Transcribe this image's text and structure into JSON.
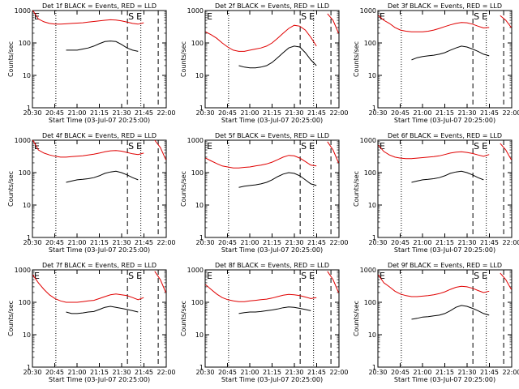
{
  "figure": {
    "background": "#ffffff",
    "events_color": "#000000",
    "lld_color": "#e00000"
  },
  "chart_data": [
    {
      "type": "line",
      "title": "Det 1f BLACK = Events, RED = LLD",
      "xlabel": "Start Time (03-Jul-07 20:25:00)",
      "ylabel": "Counts/sec",
      "xticks": [
        "20:30",
        "20:45",
        "21:00",
        "21:15",
        "21:30",
        "21:45",
        "22:00"
      ],
      "yticks": [
        "1",
        "10",
        "100",
        "1000"
      ],
      "ylim": [
        1,
        1000
      ],
      "yscale": "log",
      "markers": [
        "E",
        "S",
        "E"
      ],
      "series": [
        {
          "values": [
            null,
            null,
            null,
            null,
            null,
            null,
            60,
            60,
            60,
            65,
            70,
            80,
            95,
            110,
            115,
            110,
            90,
            70,
            60,
            55,
            null,
            null,
            null,
            null,
            null
          ]
        },
        {
          "values": [
            1000,
            550,
            450,
            400,
            380,
            380,
            390,
            400,
            410,
            420,
            440,
            460,
            480,
            500,
            520,
            510,
            480,
            440,
            400,
            380,
            420,
            null,
            null,
            null,
            null
          ]
        }
      ]
    },
    {
      "type": "line",
      "title": "Det 2f BLACK = Events, RED = LLD",
      "xlabel": "Start Time (03-Jul-07 20:25:00)",
      "ylabel": "Counts/sec",
      "xticks": [
        "20:30",
        "20:45",
        "21:00",
        "21:15",
        "21:30",
        "21:45",
        "22:00"
      ],
      "yticks": [
        "1",
        "10",
        "100",
        "1000"
      ],
      "ylim": [
        1,
        1000
      ],
      "yscale": "log",
      "markers": [
        "E",
        "S",
        "E"
      ],
      "series": [
        {
          "values": [
            null,
            null,
            null,
            null,
            null,
            null,
            20,
            18,
            17,
            17,
            18,
            20,
            25,
            35,
            50,
            70,
            80,
            75,
            50,
            30,
            20,
            null,
            null,
            null,
            null
          ]
        },
        {
          "values": [
            220,
            180,
            140,
            100,
            75,
            60,
            55,
            55,
            60,
            65,
            70,
            80,
            100,
            140,
            200,
            280,
            350,
            330,
            250,
            150,
            80,
            null,
            800,
            500,
            200
          ]
        }
      ]
    },
    {
      "type": "line",
      "title": "Det 3f BLACK = Events, RED = LLD",
      "xlabel": "Start Time (03-Jul-07 20:25:00)",
      "ylabel": "Counts/sec",
      "xticks": [
        "20:30",
        "20:45",
        "21:00",
        "21:15",
        "21:30",
        "21:45",
        "22:00"
      ],
      "yticks": [
        "1",
        "10",
        "100",
        "1000"
      ],
      "ylim": [
        1,
        1000
      ],
      "yscale": "log",
      "markers": [
        "E",
        "S",
        "E"
      ],
      "series": [
        {
          "values": [
            null,
            null,
            null,
            null,
            null,
            null,
            30,
            35,
            38,
            40,
            42,
            45,
            50,
            60,
            70,
            80,
            75,
            65,
            55,
            45,
            40,
            null,
            null,
            null,
            null
          ]
        },
        {
          "values": [
            700,
            500,
            400,
            300,
            250,
            230,
            220,
            220,
            220,
            230,
            250,
            280,
            320,
            360,
            400,
            430,
            420,
            380,
            330,
            290,
            300,
            null,
            700,
            500,
            300
          ]
        }
      ]
    },
    {
      "type": "line",
      "title": "Det 4f BLACK = Events, RED = LLD",
      "xlabel": "Start Time (03-Jul-07 20:25:00)",
      "ylabel": "Counts/sec",
      "xticks": [
        "20:30",
        "20:45",
        "21:00",
        "21:15",
        "21:30",
        "21:45",
        "22:00"
      ],
      "yticks": [
        "1",
        "10",
        "100",
        "1000"
      ],
      "ylim": [
        1,
        1000
      ],
      "yscale": "log",
      "markers": [
        "E",
        "S",
        "E"
      ],
      "series": [
        {
          "values": [
            null,
            null,
            null,
            null,
            null,
            null,
            50,
            55,
            60,
            62,
            65,
            70,
            80,
            95,
            105,
            110,
            100,
            85,
            70,
            60,
            null,
            null,
            null,
            null,
            null
          ]
        },
        {
          "values": [
            1000,
            500,
            400,
            350,
            320,
            300,
            300,
            310,
            320,
            330,
            350,
            370,
            400,
            440,
            470,
            480,
            460,
            420,
            380,
            360,
            400,
            null,
            1000,
            600,
            250
          ]
        }
      ]
    },
    {
      "type": "line",
      "title": "Det 5f BLACK = Events, RED = LLD",
      "xlabel": "Start Time (03-Jul-07 20:25:00)",
      "ylabel": "Counts/sec",
      "xticks": [
        "20:30",
        "20:45",
        "21:00",
        "21:15",
        "21:30",
        "21:45",
        "22:00"
      ],
      "yticks": [
        "1",
        "10",
        "100",
        "1000"
      ],
      "ylim": [
        1,
        1000
      ],
      "yscale": "log",
      "markers": [
        "E",
        "S",
        "E"
      ],
      "series": [
        {
          "values": [
            null,
            null,
            null,
            null,
            null,
            null,
            35,
            38,
            40,
            42,
            45,
            50,
            60,
            75,
            90,
            100,
            95,
            80,
            60,
            45,
            40,
            null,
            null,
            null,
            null
          ]
        },
        {
          "values": [
            280,
            230,
            190,
            160,
            150,
            140,
            140,
            145,
            150,
            160,
            170,
            185,
            210,
            250,
            300,
            340,
            330,
            280,
            220,
            170,
            160,
            null,
            900,
            500,
            200
          ]
        }
      ]
    },
    {
      "type": "line",
      "title": "Det 6f BLACK = Events, RED = LLD",
      "xlabel": "Start Time (03-Jul-07 20:25:00)",
      "ylabel": "Counts/sec",
      "xticks": [
        "20:30",
        "20:45",
        "21:00",
        "21:15",
        "21:30",
        "21:45",
        "22:00"
      ],
      "yticks": [
        "1",
        "10",
        "100",
        "1000"
      ],
      "ylim": [
        1,
        1000
      ],
      "yscale": "log",
      "markers": [
        "E",
        "S",
        "E"
      ],
      "series": [
        {
          "values": [
            null,
            null,
            null,
            null,
            null,
            null,
            50,
            55,
            60,
            62,
            65,
            70,
            80,
            95,
            105,
            110,
            100,
            85,
            70,
            60,
            null,
            null,
            null,
            null,
            null
          ]
        },
        {
          "values": [
            700,
            450,
            350,
            300,
            280,
            270,
            270,
            280,
            290,
            300,
            310,
            330,
            360,
            400,
            430,
            440,
            420,
            390,
            350,
            320,
            360,
            null,
            800,
            500,
            250
          ]
        }
      ]
    },
    {
      "type": "line",
      "title": "Det 7f BLACK = Events, RED = LLD",
      "xlabel": "Start Time (03-Jul-07 20:25:00)",
      "ylabel": "Counts/sec",
      "xticks": [
        "20:30",
        "20:45",
        "21:00",
        "21:15",
        "21:30",
        "21:45",
        "22:00"
      ],
      "yticks": [
        "1",
        "10",
        "100",
        "1000"
      ],
      "ylim": [
        1,
        1000
      ],
      "yscale": "log",
      "markers": [
        "E",
        "S",
        "E"
      ],
      "series": [
        {
          "values": [
            null,
            null,
            null,
            null,
            null,
            null,
            50,
            45,
            45,
            47,
            50,
            52,
            60,
            70,
            75,
            70,
            65,
            60,
            55,
            50,
            null,
            null,
            null,
            null,
            null
          ]
        },
        {
          "values": [
            700,
            400,
            250,
            170,
            130,
            110,
            100,
            100,
            100,
            105,
            110,
            115,
            130,
            150,
            170,
            180,
            170,
            160,
            140,
            120,
            140,
            null,
            900,
            500,
            200
          ]
        }
      ]
    },
    {
      "type": "line",
      "title": "Det 8f BLACK = Events, RED = LLD",
      "xlabel": "Start Time (03-Jul-07 20:25:00)",
      "ylabel": "Counts/sec",
      "xticks": [
        "20:30",
        "20:45",
        "21:00",
        "21:15",
        "21:30",
        "21:45",
        "22:00"
      ],
      "yticks": [
        "1",
        "10",
        "100",
        "1000"
      ],
      "ylim": [
        1,
        1000
      ],
      "yscale": "log",
      "markers": [
        "E",
        "S",
        "E"
      ],
      "series": [
        {
          "values": [
            null,
            null,
            null,
            null,
            null,
            null,
            45,
            48,
            50,
            50,
            52,
            55,
            58,
            62,
            68,
            72,
            70,
            65,
            60,
            55,
            null,
            null,
            null,
            null,
            null
          ]
        },
        {
          "values": [
            350,
            250,
            180,
            140,
            120,
            110,
            105,
            105,
            110,
            115,
            120,
            125,
            135,
            150,
            165,
            175,
            170,
            160,
            145,
            130,
            140,
            null,
            900,
            500,
            200
          ]
        }
      ]
    },
    {
      "type": "line",
      "title": "Det 9f BLACK = Events, RED = LLD",
      "xlabel": "Start Time (03-Jul-07 20:25:00)",
      "ylabel": "Counts/sec",
      "xticks": [
        "20:30",
        "20:45",
        "21:00",
        "21:15",
        "21:30",
        "21:45",
        "22:00"
      ],
      "yticks": [
        "1",
        "10",
        "100",
        "1000"
      ],
      "ylim": [
        1,
        1000
      ],
      "yscale": "log",
      "markers": [
        "E",
        "S",
        "E"
      ],
      "series": [
        {
          "values": [
            null,
            null,
            null,
            null,
            null,
            null,
            30,
            32,
            35,
            36,
            38,
            40,
            45,
            55,
            70,
            80,
            75,
            65,
            55,
            45,
            40,
            null,
            null,
            null,
            null
          ]
        },
        {
          "values": [
            700,
            400,
            300,
            220,
            180,
            160,
            150,
            150,
            155,
            160,
            170,
            185,
            210,
            250,
            290,
            310,
            300,
            270,
            230,
            200,
            220,
            null,
            800,
            500,
            250
          ]
        }
      ]
    }
  ]
}
